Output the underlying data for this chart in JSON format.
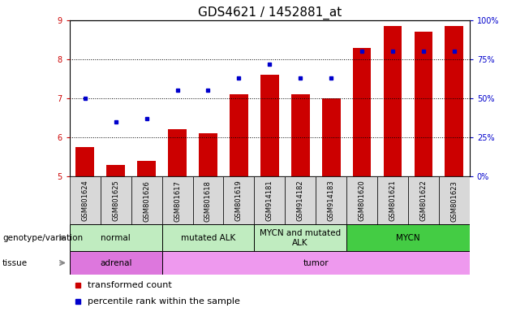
{
  "title": "GDS4621 / 1452881_at",
  "samples": [
    "GSM801624",
    "GSM801625",
    "GSM801626",
    "GSM801617",
    "GSM801618",
    "GSM801619",
    "GSM914181",
    "GSM914182",
    "GSM914183",
    "GSM801620",
    "GSM801621",
    "GSM801622",
    "GSM801623"
  ],
  "bar_values": [
    5.75,
    5.3,
    5.4,
    6.2,
    6.1,
    7.1,
    7.6,
    7.1,
    7.0,
    8.3,
    8.85,
    8.7,
    8.85
  ],
  "dot_values": [
    50,
    35,
    37,
    55,
    55,
    63,
    72,
    63,
    63,
    80,
    80,
    80,
    80
  ],
  "bar_bottom": 5.0,
  "ylim_left": [
    5,
    9
  ],
  "ylim_right": [
    0,
    100
  ],
  "yticks_left": [
    5,
    6,
    7,
    8,
    9
  ],
  "yticks_right": [
    0,
    25,
    50,
    75,
    100
  ],
  "yticklabels_right": [
    "0%",
    "25%",
    "50%",
    "75%",
    "100%"
  ],
  "bar_color": "#cc0000",
  "dot_color": "#0000cc",
  "bar_width": 0.6,
  "genotype_groups": [
    {
      "label": "normal",
      "start": 0,
      "end": 3,
      "color": "#c0ecc0"
    },
    {
      "label": "mutated ALK",
      "start": 3,
      "end": 6,
      "color": "#c0ecc0"
    },
    {
      "label": "MYCN and mutated\nALK",
      "start": 6,
      "end": 9,
      "color": "#c0ecc0"
    },
    {
      "label": "MYCN",
      "start": 9,
      "end": 13,
      "color": "#44cc44"
    }
  ],
  "tissue_groups": [
    {
      "label": "adrenal",
      "start": 0,
      "end": 3,
      "color": "#dd77dd"
    },
    {
      "label": "tumor",
      "start": 3,
      "end": 13,
      "color": "#ee99ee"
    }
  ],
  "legend_items": [
    {
      "label": "transformed count",
      "color": "#cc0000"
    },
    {
      "label": "percentile rank within the sample",
      "color": "#0000cc"
    }
  ],
  "left_color": "#cc0000",
  "right_color": "#0000cc",
  "title_fontsize": 11,
  "tick_fontsize": 7,
  "anno_fontsize": 8,
  "legend_fontsize": 8
}
